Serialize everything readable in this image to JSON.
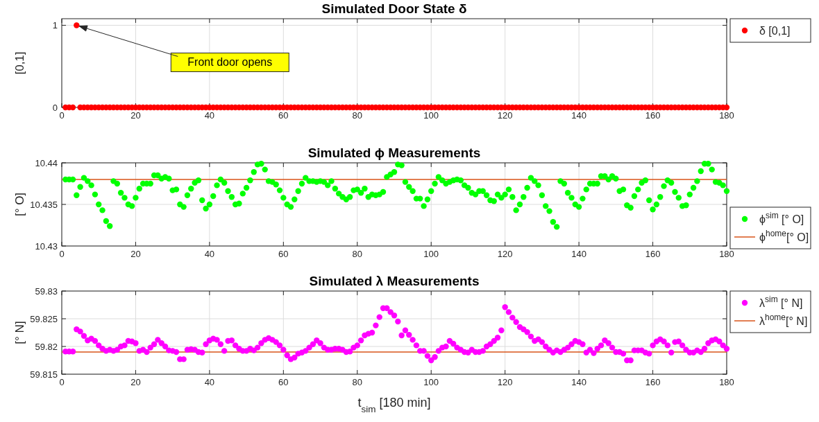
{
  "chart_data": [
    {
      "type": "scatter",
      "title": "Simulated Door State δ",
      "ylabel": "[0,1]",
      "xlim": [
        0,
        180
      ],
      "xticks": [
        0,
        20,
        40,
        60,
        80,
        100,
        120,
        140,
        160,
        180
      ],
      "ylim": [
        0,
        1.08
      ],
      "yticks": [
        0,
        1
      ],
      "grid": true,
      "legend": "top right",
      "marker": "circle",
      "annotations": [
        {
          "text": "Front door opens",
          "x": 4,
          "y": 1
        }
      ],
      "x": [
        1,
        2,
        3,
        4,
        5,
        6,
        7,
        8,
        9,
        10,
        11,
        12,
        13,
        14,
        15,
        16,
        17,
        18,
        19,
        20,
        21,
        22,
        23,
        24,
        25,
        26,
        27,
        28,
        29,
        30,
        31,
        32,
        33,
        34,
        35,
        36,
        37,
        38,
        39,
        40,
        41,
        42,
        43,
        44,
        45,
        46,
        47,
        48,
        49,
        50,
        51,
        52,
        53,
        54,
        55,
        56,
        57,
        58,
        59,
        60,
        61,
        62,
        63,
        64,
        65,
        66,
        67,
        68,
        69,
        70,
        71,
        72,
        73,
        74,
        75,
        76,
        77,
        78,
        79,
        80,
        81,
        82,
        83,
        84,
        85,
        86,
        87,
        88,
        89,
        90,
        91,
        92,
        93,
        94,
        95,
        96,
        97,
        98,
        99,
        100,
        101,
        102,
        103,
        104,
        105,
        106,
        107,
        108,
        109,
        110,
        111,
        112,
        113,
        114,
        115,
        116,
        117,
        118,
        119,
        120,
        121,
        122,
        123,
        124,
        125,
        126,
        127,
        128,
        129,
        130,
        131,
        132,
        133,
        134,
        135,
        136,
        137,
        138,
        139,
        140,
        141,
        142,
        143,
        144,
        145,
        146,
        147,
        148,
        149,
        150,
        151,
        152,
        153,
        154,
        155,
        156,
        157,
        158,
        159,
        160,
        161,
        162,
        163,
        164,
        165,
        166,
        167,
        168,
        169,
        170,
        171,
        172,
        173,
        174,
        175,
        176,
        177,
        178,
        179,
        180
      ],
      "series": [
        {
          "name": "δ [0,1]",
          "color": "#ff0000",
          "values": [
            0,
            0,
            0,
            1,
            0,
            0,
            0,
            0,
            0,
            0,
            0,
            0,
            0,
            0,
            0,
            0,
            0,
            0,
            0,
            0,
            0,
            0,
            0,
            0,
            0,
            0,
            0,
            0,
            0,
            0,
            0,
            0,
            0,
            0,
            0,
            0,
            0,
            0,
            0,
            0,
            0,
            0,
            0,
            0,
            0,
            0,
            0,
            0,
            0,
            0,
            0,
            0,
            0,
            0,
            0,
            0,
            0,
            0,
            0,
            0,
            0,
            0,
            0,
            0,
            0,
            0,
            0,
            0,
            0,
            0,
            0,
            0,
            0,
            0,
            0,
            0,
            0,
            0,
            0,
            0,
            0,
            0,
            0,
            0,
            0,
            0,
            0,
            0,
            0,
            0,
            0,
            0,
            0,
            0,
            0,
            0,
            0,
            0,
            0,
            0,
            0,
            0,
            0,
            0,
            0,
            0,
            0,
            0,
            0,
            0,
            0,
            0,
            0,
            0,
            0,
            0,
            0,
            0,
            0,
            0,
            0,
            0,
            0,
            0,
            0,
            0,
            0,
            0,
            0,
            0,
            0,
            0,
            0,
            0,
            0,
            0,
            0,
            0,
            0,
            0,
            0,
            0,
            0,
            0,
            0,
            0,
            0,
            0,
            0,
            0,
            0,
            0,
            0,
            0,
            0,
            0,
            0,
            0,
            0,
            0,
            0,
            0,
            0,
            0,
            0,
            0,
            0,
            0,
            0,
            0,
            0,
            0,
            0,
            0,
            0,
            0,
            0,
            0,
            0,
            0
          ]
        }
      ]
    },
    {
      "type": "scatter",
      "title": "Simulated ϕ Measurements",
      "ylabel": "[° O]",
      "xlim": [
        0,
        180
      ],
      "xticks": [
        0,
        20,
        40,
        60,
        80,
        100,
        120,
        140,
        160,
        180
      ],
      "ylim": [
        10.43,
        10.44
      ],
      "yticks": [
        10.43,
        10.435,
        10.44
      ],
      "grid": true,
      "legend": "bottom right",
      "marker": "circle",
      "ref_lines": [
        {
          "axis": "y",
          "value": 10.438,
          "label": "ϕ$^{home}$[° O]",
          "color": "#d95319"
        }
      ],
      "x": [
        1,
        2,
        3,
        4,
        5,
        6,
        7,
        8,
        9,
        10,
        11,
        12,
        13,
        14,
        15,
        16,
        17,
        18,
        19,
        20,
        21,
        22,
        23,
        24,
        25,
        26,
        27,
        28,
        29,
        30,
        31,
        32,
        33,
        34,
        35,
        36,
        37,
        38,
        39,
        40,
        41,
        42,
        43,
        44,
        45,
        46,
        47,
        48,
        49,
        50,
        51,
        52,
        53,
        54,
        55,
        56,
        57,
        58,
        59,
        60,
        61,
        62,
        63,
        64,
        65,
        66,
        67,
        68,
        69,
        70,
        71,
        72,
        73,
        74,
        75,
        76,
        77,
        78,
        79,
        80,
        81,
        82,
        83,
        84,
        85,
        86,
        87,
        88,
        89,
        90,
        91,
        92,
        93,
        94,
        95,
        96,
        97,
        98,
        99,
        100,
        101,
        102,
        103,
        104,
        105,
        106,
        107,
        108,
        109,
        110,
        111,
        112,
        113,
        114,
        115,
        116,
        117,
        118,
        119,
        120,
        121,
        122,
        123,
        124,
        125,
        126,
        127,
        128,
        129,
        130,
        131,
        132,
        133,
        134,
        135,
        136,
        137,
        138,
        139,
        140,
        141,
        142,
        143,
        144,
        145,
        146,
        147,
        148,
        149,
        150,
        151,
        152,
        153,
        154,
        155,
        156,
        157,
        158,
        159,
        160,
        161,
        162,
        163,
        164,
        165,
        166,
        167,
        168,
        169,
        170,
        171,
        172,
        173,
        174,
        175,
        176,
        177,
        178,
        179,
        180
      ],
      "series": [
        {
          "name": "ϕ$^{sim}$ [° O]",
          "color": "#00ff00",
          "values": [
            10.438,
            10.438,
            10.438,
            10.4361,
            10.4371,
            10.4382,
            10.4378,
            10.4373,
            10.4362,
            10.435,
            10.4343,
            10.433,
            10.4324,
            10.4378,
            10.4375,
            10.4364,
            10.4358,
            10.435,
            10.4348,
            10.4358,
            10.4369,
            10.4375,
            10.4375,
            10.4375,
            10.4385,
            10.4385,
            10.4381,
            10.4383,
            10.4381,
            10.4367,
            10.4368,
            10.435,
            10.4347,
            10.4361,
            10.4369,
            10.4376,
            10.4379,
            10.4355,
            10.4345,
            10.435,
            10.436,
            10.4373,
            10.438,
            10.4376,
            10.4366,
            10.4359,
            10.435,
            10.4351,
            10.4363,
            10.437,
            10.4379,
            10.4389,
            10.4398,
            10.4399,
            10.4392,
            10.4378,
            10.4377,
            10.4374,
            10.4367,
            10.4358,
            10.435,
            10.4347,
            10.4356,
            10.4366,
            10.4375,
            10.4382,
            10.4378,
            10.4378,
            10.4377,
            10.4378,
            10.4377,
            10.4373,
            10.4378,
            10.4369,
            10.4363,
            10.4359,
            10.4356,
            10.4359,
            10.4367,
            10.4368,
            10.4364,
            10.4369,
            10.4359,
            10.4362,
            10.4361,
            10.4362,
            10.4365,
            10.4383,
            10.4386,
            10.4389,
            10.4398,
            10.4397,
            10.4377,
            10.4371,
            10.4366,
            10.4357,
            10.4357,
            10.4348,
            10.4356,
            10.4366,
            10.4375,
            10.4383,
            10.4379,
            10.4375,
            10.4377,
            10.4379,
            10.438,
            10.4379,
            10.4373,
            10.437,
            10.4364,
            10.4362,
            10.4366,
            10.4366,
            10.4361,
            10.4355,
            10.4354,
            10.4362,
            10.4358,
            10.4362,
            10.4368,
            10.4359,
            10.4343,
            10.435,
            10.4359,
            10.437,
            10.4382,
            10.4378,
            10.4373,
            10.4361,
            10.4348,
            10.4342,
            10.4329,
            10.4323,
            10.4378,
            10.4375,
            10.4364,
            10.4358,
            10.435,
            10.4347,
            10.4357,
            10.4368,
            10.4375,
            10.4375,
            10.4375,
            10.4384,
            10.4384,
            10.438,
            10.4384,
            10.4381,
            10.4366,
            10.4368,
            10.4349,
            10.4346,
            10.436,
            10.4368,
            10.4376,
            10.4379,
            10.4355,
            10.4344,
            10.435,
            10.4359,
            10.4372,
            10.4379,
            10.4376,
            10.4365,
            10.4358,
            10.4348,
            10.4349,
            10.4362,
            10.437,
            10.4378,
            10.439,
            10.4399,
            10.4399,
            10.4392,
            10.4377,
            10.4376,
            10.4373,
            10.4366
          ]
        }
      ]
    },
    {
      "type": "scatter",
      "title": "Simulated λ Measurements",
      "ylabel": "[° N]",
      "xlabel": "t$_{sim}$ [180 min]",
      "xlim": [
        0,
        180
      ],
      "xticks": [
        0,
        20,
        40,
        60,
        80,
        100,
        120,
        140,
        160,
        180
      ],
      "ylim": [
        59.815,
        59.83
      ],
      "yticks": [
        59.815,
        59.82,
        59.825,
        59.83
      ],
      "grid": true,
      "legend": "top right",
      "marker": "circle",
      "ref_lines": [
        {
          "axis": "y",
          "value": 59.819,
          "label": "λ$^{home}$[° N]",
          "color": "#d95319"
        }
      ],
      "x": [
        1,
        2,
        3,
        4,
        5,
        6,
        7,
        8,
        9,
        10,
        11,
        12,
        13,
        14,
        15,
        16,
        17,
        18,
        19,
        20,
        21,
        22,
        23,
        24,
        25,
        26,
        27,
        28,
        29,
        30,
        31,
        32,
        33,
        34,
        35,
        36,
        37,
        38,
        39,
        40,
        41,
        42,
        43,
        44,
        45,
        46,
        47,
        48,
        49,
        50,
        51,
        52,
        53,
        54,
        55,
        56,
        57,
        58,
        59,
        60,
        61,
        62,
        63,
        64,
        65,
        66,
        67,
        68,
        69,
        70,
        71,
        72,
        73,
        74,
        75,
        76,
        77,
        78,
        79,
        80,
        81,
        82,
        83,
        84,
        85,
        86,
        87,
        88,
        89,
        90,
        91,
        92,
        93,
        94,
        95,
        96,
        97,
        98,
        99,
        100,
        101,
        102,
        103,
        104,
        105,
        106,
        107,
        108,
        109,
        110,
        111,
        112,
        113,
        114,
        115,
        116,
        117,
        118,
        119,
        120,
        121,
        122,
        123,
        124,
        125,
        126,
        127,
        128,
        129,
        130,
        131,
        132,
        133,
        134,
        135,
        136,
        137,
        138,
        139,
        140,
        141,
        142,
        143,
        144,
        145,
        146,
        147,
        148,
        149,
        150,
        151,
        152,
        153,
        154,
        155,
        156,
        157,
        158,
        159,
        160,
        161,
        162,
        163,
        164,
        165,
        166,
        167,
        168,
        169,
        170,
        171,
        172,
        173,
        174,
        175,
        176,
        177,
        178,
        179,
        180
      ],
      "series": [
        {
          "name": "λ$^{sim}$ [° N]",
          "color": "#ff00ff",
          "values": [
            59.8191,
            59.8191,
            59.8191,
            59.8231,
            59.8227,
            59.8219,
            59.8211,
            59.8214,
            59.821,
            59.8202,
            59.8196,
            59.8192,
            59.8194,
            59.8192,
            59.8194,
            59.82,
            59.8202,
            59.821,
            59.8209,
            59.8206,
            59.8192,
            59.8194,
            59.819,
            59.8198,
            59.8204,
            59.8212,
            59.8206,
            59.82,
            59.8193,
            59.8192,
            59.819,
            59.8177,
            59.8177,
            59.8194,
            59.8195,
            59.8194,
            59.819,
            59.8189,
            59.8204,
            59.8211,
            59.8214,
            59.8212,
            59.8204,
            59.8192,
            59.821,
            59.8211,
            59.8202,
            59.8196,
            59.8192,
            59.8192,
            59.8196,
            59.8193,
            59.8198,
            59.8206,
            59.8212,
            59.8215,
            59.8212,
            59.8208,
            59.8202,
            59.8194,
            59.8184,
            59.8177,
            59.818,
            59.8187,
            59.8189,
            59.8192,
            59.8198,
            59.8204,
            59.8211,
            59.8206,
            59.8198,
            59.8194,
            59.8194,
            59.8196,
            59.8196,
            59.8194,
            59.819,
            59.8191,
            59.8198,
            59.8202,
            59.8211,
            59.822,
            59.8223,
            59.8225,
            59.8238,
            59.8253,
            59.8269,
            59.8269,
            59.8262,
            59.8256,
            59.8245,
            59.822,
            59.8229,
            59.8221,
            59.8212,
            59.8202,
            59.8192,
            59.8192,
            59.8183,
            59.8175,
            59.8181,
            59.8192,
            59.8198,
            59.82,
            59.821,
            59.8205,
            59.8198,
            59.8194,
            59.819,
            59.8189,
            59.8194,
            59.819,
            59.819,
            59.8192,
            59.82,
            59.8204,
            59.821,
            59.8216,
            59.8229,
            59.8271,
            59.8262,
            59.8252,
            59.8244,
            59.8235,
            59.8231,
            59.8226,
            59.8218,
            59.821,
            59.8213,
            59.8208,
            59.82,
            59.8194,
            59.8189,
            59.8193,
            59.819,
            59.8194,
            59.8198,
            59.8204,
            59.821,
            59.8208,
            59.8204,
            59.8189,
            59.8194,
            59.8188,
            59.8196,
            59.8202,
            59.8211,
            59.8206,
            59.8198,
            59.819,
            59.819,
            59.8187,
            59.8175,
            59.8175,
            59.8193,
            59.8193,
            59.8193,
            59.8189,
            59.8187,
            59.8202,
            59.8209,
            59.8213,
            59.8209,
            59.8202,
            59.8189,
            59.8208,
            59.8209,
            59.8202,
            59.8194,
            59.8189,
            59.8189,
            59.8193,
            59.819,
            59.8196,
            59.8206,
            59.8211,
            59.8213,
            59.8209,
            59.8202,
            59.8196
          ]
        }
      ]
    }
  ]
}
